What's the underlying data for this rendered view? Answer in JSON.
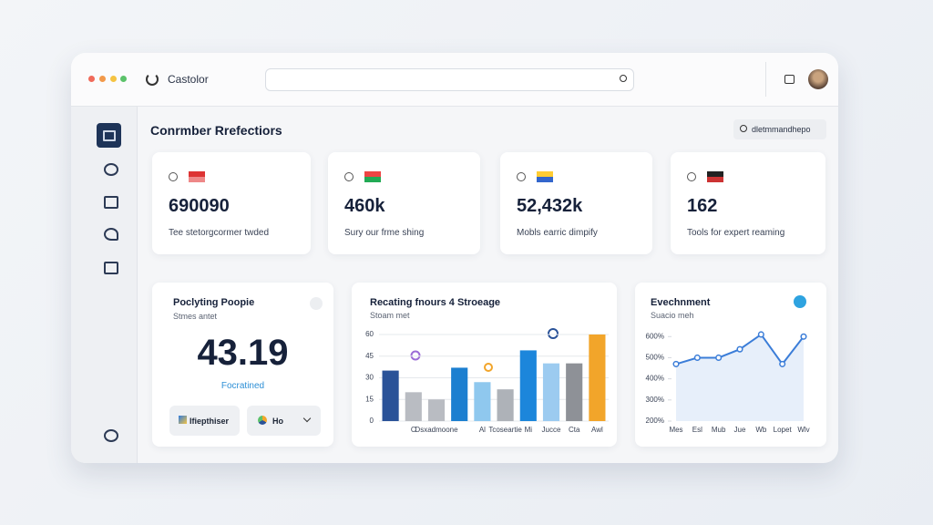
{
  "app": {
    "title": "Castolor"
  },
  "page": {
    "title": "Conrmber Rrefectiors",
    "search_button": "dletmmandhepo"
  },
  "stats": [
    {
      "value": "690090",
      "label": "Tee stetorgcormer twded"
    },
    {
      "value": "460k",
      "label": "Sury our frme shing"
    },
    {
      "value": "52,432k",
      "label": "Mobls earric dimpify"
    },
    {
      "value": "162",
      "label": "Tools for expert reaming"
    }
  ],
  "metric_panel": {
    "title": "Poclyting Poopie",
    "subtitle": "Stmes antet",
    "value": "43.19",
    "caption": "Focratined",
    "buttons": [
      "Ifiepthiser",
      "Ho"
    ]
  },
  "bar_chart": {
    "type": "bar",
    "title": "Recating fnours 4 Stroeage",
    "subtitle": "Stoam met",
    "categories": [
      null,
      "C",
      "Dsxadmoone",
      null,
      "Al",
      "Tcoseartie",
      "Mi",
      "Jucce",
      "Cta",
      "Awl"
    ],
    "values": [
      35,
      20,
      15,
      37,
      27,
      22,
      49,
      40,
      40,
      60
    ],
    "colors": [
      "#2a5298",
      "#b9bcc2",
      "#b9bcc2",
      "#1c7fd0",
      "#8fc8ee",
      "#aeb2b8",
      "#1c86db",
      "#9ccbf0",
      "#8e9197",
      "#f2a52a"
    ],
    "ylim": [
      0,
      60
    ],
    "yticks": [
      0,
      15,
      30,
      45,
      60
    ],
    "grid": true
  },
  "line_chart": {
    "type": "line",
    "title": "Evechnment",
    "subtitle": "Suacio meh",
    "categories": [
      "Mes",
      "Esl",
      "Mub",
      "Jue",
      "Wb",
      "Lopet",
      "Wlv"
    ],
    "values": [
      470,
      500,
      500,
      540,
      610,
      470,
      600
    ],
    "color": "#3b7dd8",
    "ylim": [
      200,
      640
    ],
    "yticks": [
      {
        "value": 200,
        "label": "200%"
      },
      {
        "value": 300,
        "label": "300%"
      },
      {
        "value": 400,
        "label": "400%"
      },
      {
        "value": 500,
        "label": "500%"
      },
      {
        "value": 600,
        "label": "600%"
      }
    ],
    "grid": false
  }
}
